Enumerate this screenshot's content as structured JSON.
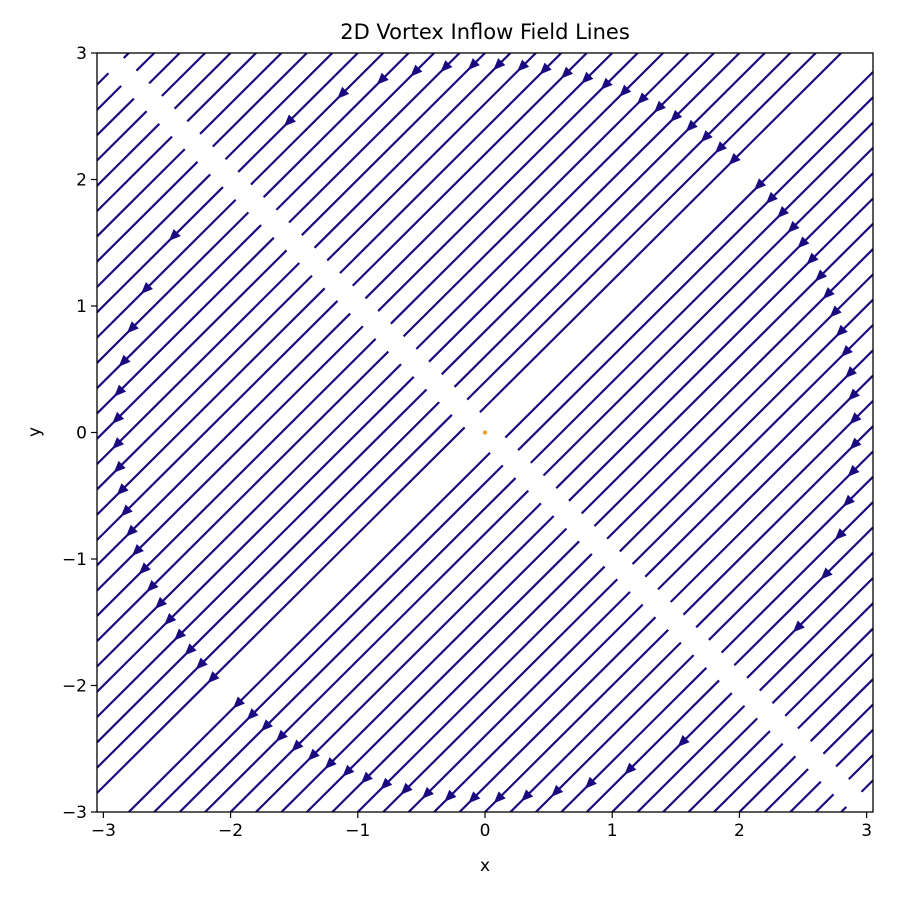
{
  "chart_data": {
    "type": "streamplot",
    "title": "2D Vortex Inflow Field Lines",
    "xlabel": "x",
    "ylabel": "y",
    "xlim": [
      -3.05,
      3.05
    ],
    "ylim": [
      -3,
      3
    ],
    "x_ticks": [
      -3,
      -2,
      -1,
      0,
      1,
      2,
      3
    ],
    "y_ticks": [
      -3,
      -2,
      -1,
      0,
      1,
      2,
      3
    ],
    "x_tick_labels": [
      "−3",
      "−2",
      "−1",
      "0",
      "1",
      "2",
      "3"
    ],
    "y_tick_labels": [
      "−3",
      "−2",
      "−1",
      "0",
      "1",
      "2",
      "3"
    ],
    "grid": false,
    "legend": "none",
    "field": {
      "flow_direction": "down-left",
      "line_slope": 1.0,
      "intercepts": [
        -5.8,
        -5.6,
        -5.4,
        -5.2,
        -5.0,
        -4.8,
        -4.6,
        -4.4,
        -4.2,
        -4.0,
        -3.8,
        -3.6,
        -3.4,
        -3.2,
        -3.0,
        -2.8,
        -2.6,
        -2.4,
        -2.2,
        -2.0,
        -1.8,
        -1.6,
        -1.4,
        -1.2,
        -1.0,
        -0.8,
        -0.6,
        -0.4,
        -0.2,
        0.2,
        0.4,
        0.6,
        0.8,
        1.0,
        1.2,
        1.4,
        1.6,
        1.8,
        2.0,
        2.2,
        2.4,
        2.6,
        2.8,
        3.0,
        3.2,
        3.4,
        3.6,
        3.8,
        4.0,
        4.2,
        4.4,
        4.6,
        4.8,
        5.0,
        5.2,
        5.4,
        5.6,
        5.8
      ],
      "arrow_ring_radius": 2.9,
      "center": [
        0,
        0
      ],
      "center_point_color": "#f0a030"
    },
    "colors": {
      "line": "#1a0a80",
      "arrow": "#1a0a80",
      "axes": "#000000",
      "background": "#ffffff"
    }
  }
}
